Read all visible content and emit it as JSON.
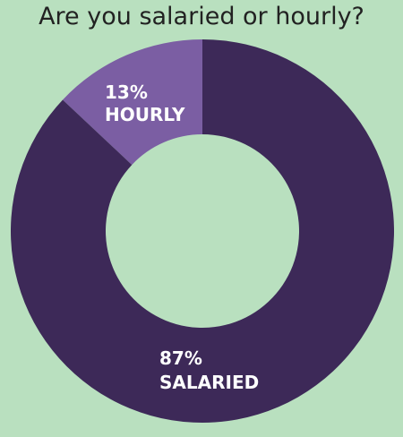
{
  "chart_data": {
    "type": "pie",
    "donut": true,
    "title": "Are you salaried or hourly?",
    "slices": [
      {
        "label": "HOURLY",
        "value": 13,
        "value_label": "13%",
        "color": "#7b5ea3"
      },
      {
        "label": "SALARIED",
        "value": 87,
        "value_label": "87%",
        "color": "#3d2958"
      }
    ],
    "background_color": "#b9e0bf"
  }
}
